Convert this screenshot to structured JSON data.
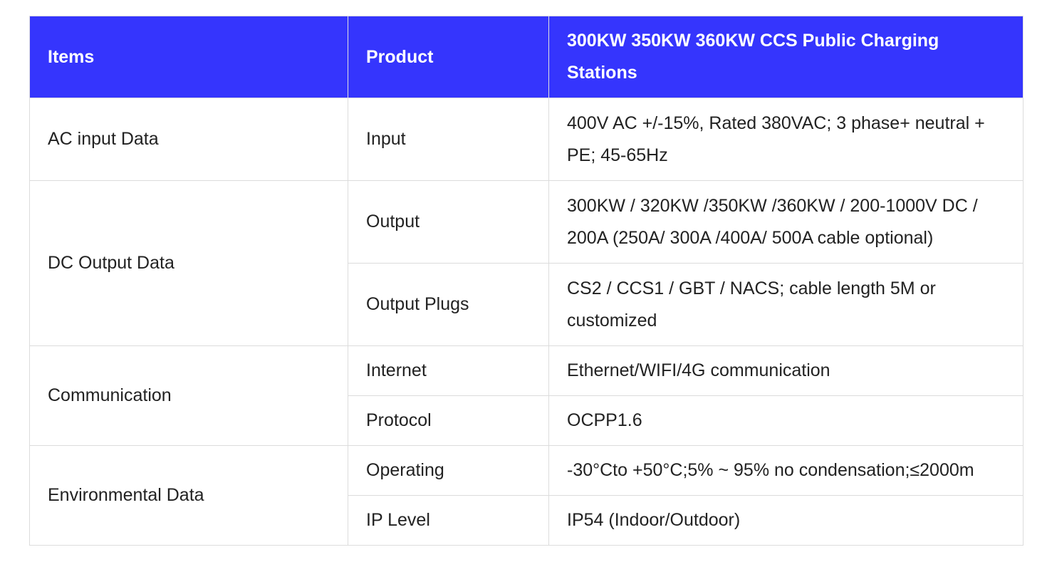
{
  "table": {
    "header": [
      "Items",
      "Product",
      "300KW 350KW 360KW CCS Public Charging Stations"
    ],
    "groups": [
      {
        "item": "AC input Data",
        "rows": [
          [
            "Input",
            "400V AC +/-15%, Rated 380VAC; 3 phase+ neutral + PE; 45-65Hz"
          ]
        ]
      },
      {
        "item": "DC Output Data",
        "rows": [
          [
            "Output",
            "300KW / 320KW /350KW /360KW / 200-1000V DC / 200A (250A/ 300A /400A/ 500A cable optional)"
          ],
          [
            "Output Plugs",
            "CS2 / CCS1 / GBT / NACS; cable length 5M or customized"
          ]
        ]
      },
      {
        "item": "Communication",
        "rows": [
          [
            "Internet",
            "Ethernet/WIFI/4G communication"
          ],
          [
            "Protocol",
            "OCPP1.6"
          ]
        ]
      },
      {
        "item": "Environmental Data",
        "rows": [
          [
            "Operating",
            "-30°Cto +50°C;5% ~ 95% no condensation;≤2000m"
          ],
          [
            "IP Level",
            "IP54 (Indoor/Outdoor)"
          ]
        ]
      }
    ]
  }
}
